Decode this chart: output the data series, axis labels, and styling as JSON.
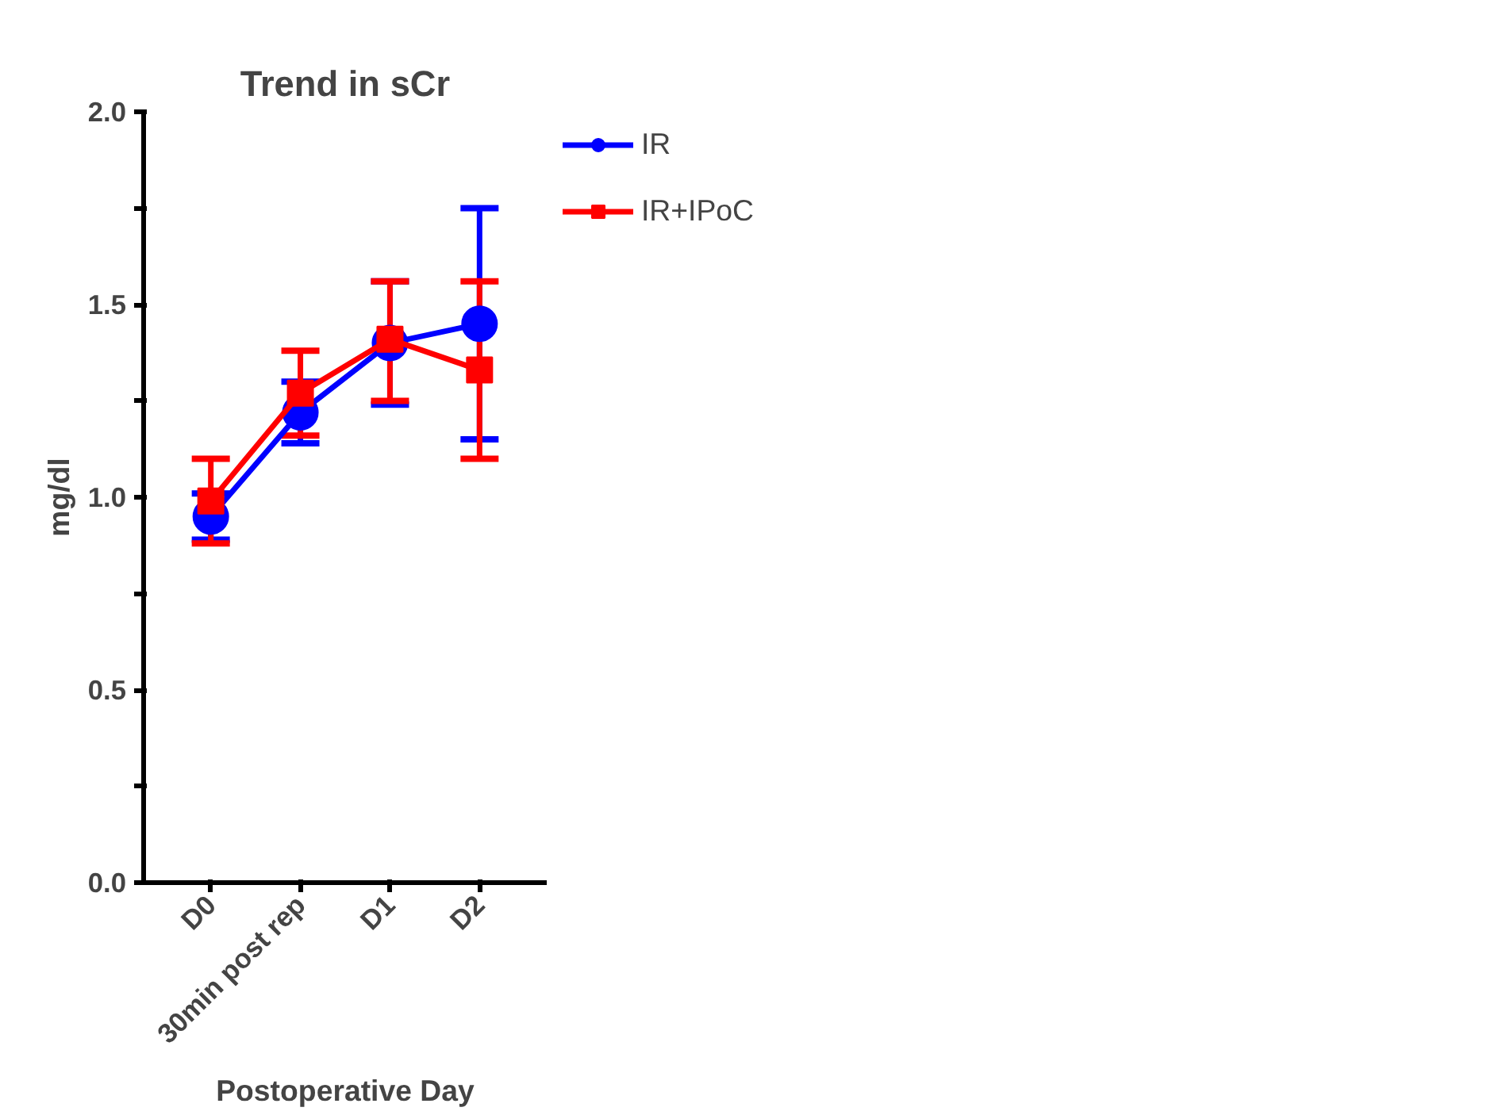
{
  "chart_data": {
    "type": "line",
    "title": "Trend in sCr",
    "xlabel": "Postoperative Day",
    "ylabel": "mg/dl",
    "categories": [
      "D0",
      "30min post rep",
      "D1",
      "D2"
    ],
    "series": [
      {
        "name": "IR",
        "color": "#0000ff",
        "marker": "circle",
        "values": [
          0.95,
          1.22,
          1.4,
          1.45
        ],
        "errors": [
          0.06,
          [
            1.14,
            1.3
          ],
          [
            1.24,
            1.56
          ],
          [
            1.15,
            1.75
          ]
        ]
      },
      {
        "name": "IR+IPoC",
        "color": "#ff0000",
        "marker": "square",
        "values": [
          0.99,
          1.27,
          1.41,
          1.33
        ],
        "errors": [
          [
            0.88,
            1.1
          ],
          [
            1.16,
            1.38
          ],
          [
            1.25,
            1.56
          ],
          [
            1.1,
            1.56
          ]
        ]
      }
    ],
    "ylim": [
      0,
      2.0
    ],
    "yticks": [
      {
        "value": 0,
        "label": "0.0"
      },
      {
        "value": 0.25,
        "label": null
      },
      {
        "value": 0.5,
        "label": "0.5"
      },
      {
        "value": 0.75,
        "label": null
      },
      {
        "value": 1.0,
        "label": "1.0"
      },
      {
        "value": 1.25,
        "label": null
      },
      {
        "value": 1.5,
        "label": "1.5"
      },
      {
        "value": 1.75,
        "label": null
      },
      {
        "value": 2.0,
        "label": "2.0"
      }
    ],
    "grid": false,
    "legend": "top right",
    "line_style": "solid"
  }
}
